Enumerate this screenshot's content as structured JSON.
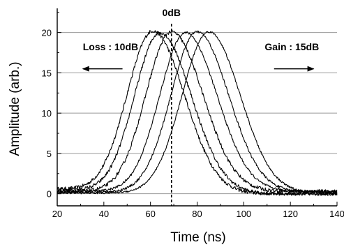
{
  "chart_data": {
    "type": "line",
    "xlabel": "Time (ns)",
    "ylabel": "Amplitude (arb.)",
    "xlim": [
      20,
      140
    ],
    "ylim": [
      -1.5,
      23
    ],
    "xticks": [
      20,
      40,
      60,
      80,
      100,
      120,
      140
    ],
    "yticks": [
      0,
      5,
      10,
      15,
      20
    ],
    "x_minor_step": 10,
    "y_minor_step": 2.5,
    "grid": "horizontal",
    "reference_line": {
      "x": 69,
      "style": "dashed",
      "label": "0dB"
    },
    "annotations": [
      {
        "text": "Loss : 10dB",
        "x": 31,
        "y": 17.8,
        "arrow": {
          "from_x": 48,
          "to_x": 31,
          "y": 15.5
        }
      },
      {
        "text": "Gain : 15dB",
        "x": 109,
        "y": 17.8,
        "arrow": {
          "from_x": 113,
          "to_x": 130,
          "y": 15.5
        }
      }
    ],
    "series": [
      {
        "peak_x": 61,
        "peak_y": 20.2,
        "sigma_left": 11.0,
        "sigma_right": 13.5,
        "baseline": 0.6,
        "baseline_slope": 0.008,
        "noise": 0.22
      },
      {
        "peak_x": 64,
        "peak_y": 20.0,
        "sigma_left": 10.8,
        "sigma_right": 13.5,
        "baseline": 0.5,
        "baseline_slope": 0.006,
        "noise": 0.22
      },
      {
        "peak_x": 69,
        "peak_y": 20.1,
        "sigma_left": 11.0,
        "sigma_right": 13.5,
        "baseline": 0.3,
        "baseline_slope": 0.0,
        "noise": 0.22
      },
      {
        "peak_x": 75,
        "peak_y": 20.0,
        "sigma_left": 11.0,
        "sigma_right": 13.5,
        "baseline": 0.3,
        "baseline_slope": 0.0,
        "noise": 0.15
      },
      {
        "peak_x": 80,
        "peak_y": 20.1,
        "sigma_left": 11.2,
        "sigma_right": 13.5,
        "baseline": 0.2,
        "baseline_slope": 0.0,
        "noise": 0.15
      },
      {
        "peak_x": 85,
        "peak_y": 20.1,
        "sigma_left": 11.5,
        "sigma_right": 13.5,
        "baseline": 0.1,
        "baseline_slope": 0.0,
        "noise": 0.12
      }
    ]
  }
}
